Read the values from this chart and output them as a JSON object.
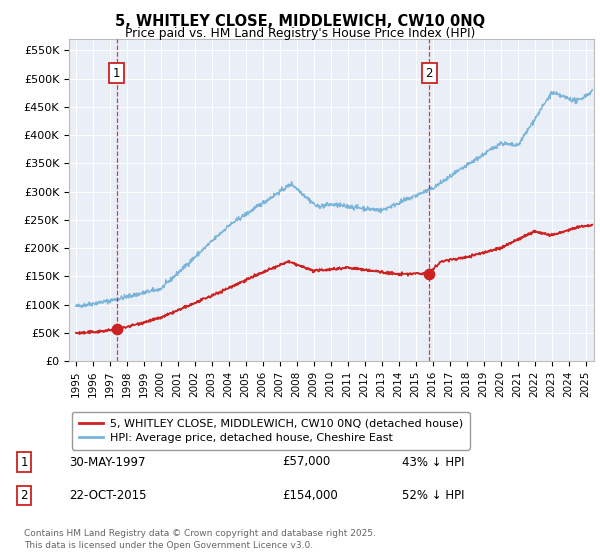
{
  "title": "5, WHITLEY CLOSE, MIDDLEWICH, CW10 0NQ",
  "subtitle": "Price paid vs. HM Land Registry's House Price Index (HPI)",
  "legend_line1": "5, WHITLEY CLOSE, MIDDLEWICH, CW10 0NQ (detached house)",
  "legend_line2": "HPI: Average price, detached house, Cheshire East",
  "annotation1_label": "1",
  "annotation1_date": "30-MAY-1997",
  "annotation1_price": 57000,
  "annotation1_text": "43% ↓ HPI",
  "annotation2_label": "2",
  "annotation2_date": "22-OCT-2015",
  "annotation2_price": 154000,
  "annotation2_text": "52% ↓ HPI",
  "sale_dates": [
    1997.41,
    2015.81
  ],
  "sale_prices": [
    57000,
    154000
  ],
  "hpi_color": "#7ab4d8",
  "price_color": "#cc2222",
  "vline_color": "#cc2222",
  "background_color": "#eaeff7",
  "footer": "Contains HM Land Registry data © Crown copyright and database right 2025.\nThis data is licensed under the Open Government Licence v3.0.",
  "ylim": [
    0,
    570000
  ],
  "xlim_start": 1994.6,
  "xlim_end": 2025.5,
  "ytick_values": [
    0,
    50000,
    100000,
    150000,
    200000,
    250000,
    300000,
    350000,
    400000,
    450000,
    500000,
    550000
  ],
  "ytick_labels": [
    "£0",
    "£50K",
    "£100K",
    "£150K",
    "£200K",
    "£250K",
    "£300K",
    "£350K",
    "£400K",
    "£450K",
    "£500K",
    "£550K"
  ],
  "xtick_years": [
    1995,
    1996,
    1997,
    1998,
    1999,
    2000,
    2001,
    2002,
    2003,
    2004,
    2005,
    2006,
    2007,
    2008,
    2009,
    2010,
    2011,
    2012,
    2013,
    2014,
    2015,
    2016,
    2017,
    2018,
    2019,
    2020,
    2021,
    2022,
    2023,
    2024,
    2025
  ]
}
